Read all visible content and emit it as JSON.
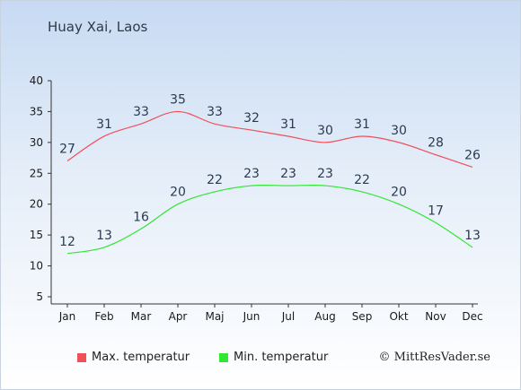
{
  "title": "Huay Xai, Laos",
  "colors": {
    "max": "#f0505a",
    "min": "#32e632"
  },
  "legend": {
    "max_label": "Max. temperatur",
    "min_label": "Min. temperatur"
  },
  "credit": "© MittResVader.se",
  "chart_data": {
    "type": "line",
    "categories": [
      "Jan",
      "Feb",
      "Mar",
      "Apr",
      "Maj",
      "Jun",
      "Jul",
      "Aug",
      "Sep",
      "Okt",
      "Nov",
      "Dec"
    ],
    "series": [
      {
        "name": "Max. temperatur",
        "values": [
          27,
          31,
          33,
          35,
          33,
          32,
          31,
          30,
          31,
          30,
          28,
          26
        ]
      },
      {
        "name": "Min. temperatur",
        "values": [
          12,
          13,
          16,
          20,
          22,
          23,
          23,
          23,
          22,
          20,
          17,
          13
        ]
      }
    ],
    "yticks": [
      5,
      10,
      15,
      20,
      25,
      30,
      35,
      40
    ],
    "ylim": [
      5,
      40
    ],
    "grid": false,
    "legend_position": "bottom"
  }
}
